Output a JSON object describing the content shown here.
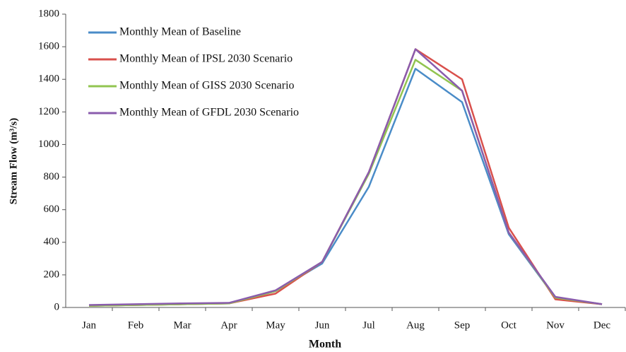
{
  "chart_data": {
    "type": "line",
    "x_label": "Month",
    "y_label": "Stream Flow (m³/s)",
    "categories": [
      "Jan",
      "Feb",
      "Mar",
      "Apr",
      "May",
      "Jun",
      "Jul",
      "Aug",
      "Sep",
      "Oct",
      "Nov",
      "Dec"
    ],
    "series": [
      {
        "name": "Monthly Mean of Baseline",
        "color": "#4a8cc8",
        "values": [
          10,
          15,
          20,
          25,
          100,
          270,
          740,
          1465,
          1260,
          450,
          60,
          20
        ]
      },
      {
        "name": "Monthly Mean of IPSL 2030 Scenario",
        "color": "#d9504c",
        "values": [
          10,
          15,
          20,
          25,
          85,
          280,
          830,
          1585,
          1400,
          490,
          50,
          20
        ]
      },
      {
        "name": "Monthly Mean of GISS 2030 Scenario",
        "color": "#92c450",
        "values": [
          10,
          15,
          20,
          25,
          100,
          280,
          820,
          1520,
          1330,
          460,
          60,
          20
        ]
      },
      {
        "name": "Monthly Mean of GFDL 2030 Scenario",
        "color": "#8a5cad",
        "values": [
          15,
          20,
          25,
          28,
          105,
          280,
          830,
          1585,
          1330,
          460,
          65,
          20
        ]
      }
    ],
    "ylim": [
      0,
      1800
    ],
    "yticks": [
      0,
      200,
      400,
      600,
      800,
      1000,
      1200,
      1400,
      1600,
      1800
    ],
    "legend": "upper left",
    "grid": false
  }
}
